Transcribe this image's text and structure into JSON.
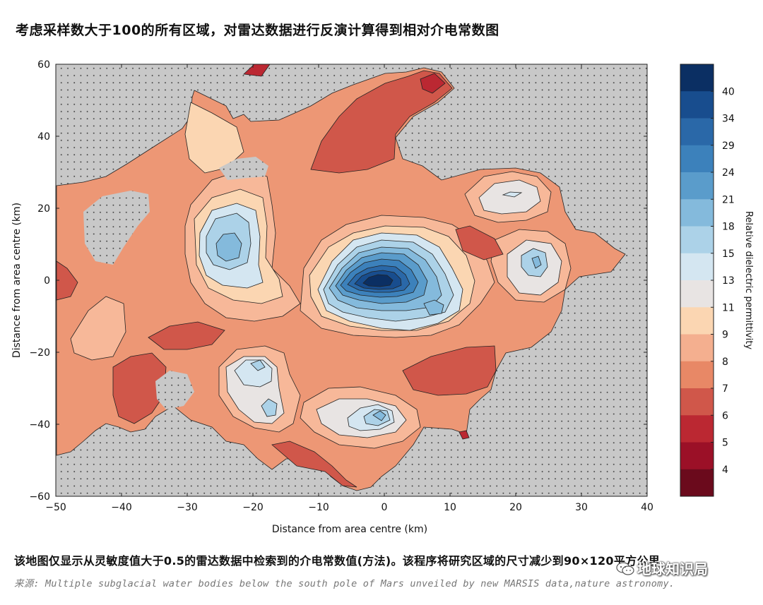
{
  "header": {
    "title": "考虑采样数大于100的所有区域，对雷达数据进行反演计算得到相对介电常数图"
  },
  "chart_data": {
    "type": "heatmap",
    "subtype": "filled-contour map",
    "xlabel": "Distance from area centre (km)",
    "ylabel": "Distance from area centre (km)",
    "xlim": [
      -50,
      40
    ],
    "ylim": [
      -60,
      60
    ],
    "xticks": [
      -50,
      -40,
      -30,
      -20,
      -10,
      0,
      10,
      20,
      30,
      40
    ],
    "yticks": [
      60,
      40,
      20,
      0,
      -20,
      -40,
      -60
    ],
    "colorbar": {
      "label": "Relative dielectric permittivity",
      "tick_labels": [
        "40",
        "34",
        "29",
        "24",
        "21",
        "18",
        "15",
        "13",
        "11",
        "9",
        "8",
        "7",
        "6",
        "5",
        "4"
      ],
      "colors": [
        "#0b2f63",
        "#184d8e",
        "#2a68a8",
        "#3c81bb",
        "#5a9ccb",
        "#84badc",
        "#acd2e8",
        "#d4e6f1",
        "#e8e4e3",
        "#fbd6b2",
        "#f4af8f",
        "#e88866",
        "#d0574a",
        "#bb2832",
        "#9b1027",
        "#6b0a1c"
      ]
    },
    "features": [
      {
        "name": "central high-permittivity zone",
        "x": 0,
        "y": 0,
        "peak_value": 40
      },
      {
        "name": "western blue zone",
        "x": -22,
        "y": 8,
        "peak_value": 18
      },
      {
        "name": "southwest blue zone",
        "x": -19,
        "y": -28,
        "peak_value": 15
      },
      {
        "name": "southern blue zone",
        "x": -1,
        "y": -37,
        "peak_value": 18
      },
      {
        "name": "eastern high zone",
        "x": 23,
        "y": 5,
        "peak_value": 15
      },
      {
        "name": "northeast high zone",
        "x": 20,
        "y": 23,
        "peak_value": 13
      },
      {
        "name": "northern low-permittivity zone",
        "x": 5,
        "y": 43,
        "peak_value": 6
      }
    ],
    "background": "grey = sampling <= 100 (no data)"
  },
  "caption": "该地图仅显示从灵敏度值大于0.5的雷达数据中检索到的介电常数值(方法)。该程序将研究区域的尺寸减少到90×120平方公里。",
  "source": "来源: Multiple subglacial water bodies below the south pole of Mars unveiled by new MARSIS data,nature astronomy.",
  "watermark": "地球知识局"
}
